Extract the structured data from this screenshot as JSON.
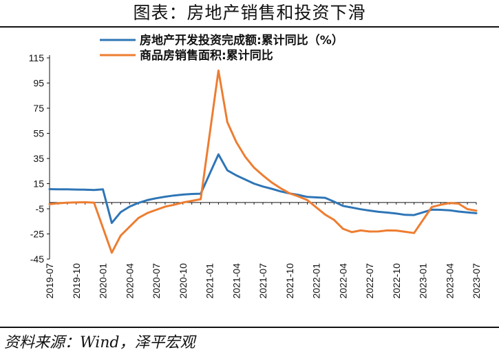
{
  "title": "图表：房地产销售和投资下滑",
  "source": "资料来源：Wind，泽平宏观",
  "chart_data": {
    "type": "line",
    "ylim": [
      -45,
      115
    ],
    "yticks": [
      115,
      95,
      75,
      55,
      35,
      15,
      -5,
      -25,
      -45
    ],
    "x_tick_labels": [
      "2019-07",
      "2019-10",
      "2020-01",
      "2020-04",
      "2020-07",
      "2020-10",
      "2021-01",
      "2021-04",
      "2021-07",
      "2021-10",
      "2022-01",
      "2022-04",
      "2022-07",
      "2022-10",
      "2023-01",
      "2023-04",
      "2023-07"
    ],
    "x": [
      "2019-07",
      "2019-08",
      "2019-09",
      "2019-10",
      "2019-11",
      "2019-12",
      "2020-01",
      "2020-02",
      "2020-03",
      "2020-04",
      "2020-05",
      "2020-06",
      "2020-07",
      "2020-08",
      "2020-09",
      "2020-10",
      "2020-11",
      "2020-12",
      "2021-01",
      "2021-02",
      "2021-03",
      "2021-04",
      "2021-05",
      "2021-06",
      "2021-07",
      "2021-08",
      "2021-09",
      "2021-10",
      "2021-11",
      "2021-12",
      "2022-01",
      "2022-02",
      "2022-03",
      "2022-04",
      "2022-05",
      "2022-06",
      "2022-07",
      "2022-08",
      "2022-09",
      "2022-10",
      "2022-11",
      "2022-12",
      "2023-01",
      "2023-02",
      "2023-03",
      "2023-04",
      "2023-05",
      "2023-06",
      "2023-07"
    ],
    "series": [
      {
        "name": "房地产开发投资完成额:累计同比（%）",
        "color": "#2E75B6",
        "values": [
          10.6,
          10.5,
          10.5,
          10.3,
          10.2,
          9.9,
          10.5,
          -16.3,
          -7.7,
          -3.3,
          -0.3,
          1.9,
          3.4,
          4.6,
          5.6,
          6.3,
          6.8,
          7.0,
          null,
          38.3,
          25.6,
          21.6,
          18.3,
          15.0,
          12.7,
          10.9,
          8.8,
          7.2,
          6.0,
          4.4,
          null,
          3.7,
          0.7,
          -2.7,
          -4.0,
          -5.4,
          -6.4,
          -7.4,
          -8.0,
          -8.8,
          -9.8,
          -10.0,
          null,
          -5.7,
          -5.8,
          -6.2,
          -7.2,
          -7.9,
          -8.5
        ]
      },
      {
        "name": "商品房销售面积:累计同比",
        "color": "#ED7D31",
        "values": [
          -1.3,
          -0.6,
          -0.1,
          0.1,
          0.2,
          -0.1,
          null,
          -39.9,
          -26.3,
          -19.3,
          -12.3,
          -8.4,
          -5.8,
          -3.3,
          -1.8,
          0.0,
          1.3,
          2.6,
          null,
          104.9,
          63.8,
          48.1,
          36.4,
          27.7,
          21.5,
          15.9,
          11.3,
          7.3,
          4.8,
          1.9,
          null,
          -9.6,
          -13.8,
          -20.9,
          -23.6,
          -22.2,
          -23.1,
          -23.0,
          -22.2,
          -22.3,
          -23.3,
          -24.3,
          null,
          -3.6,
          -1.8,
          -0.4,
          -0.9,
          -5.3,
          -6.5
        ]
      }
    ]
  }
}
